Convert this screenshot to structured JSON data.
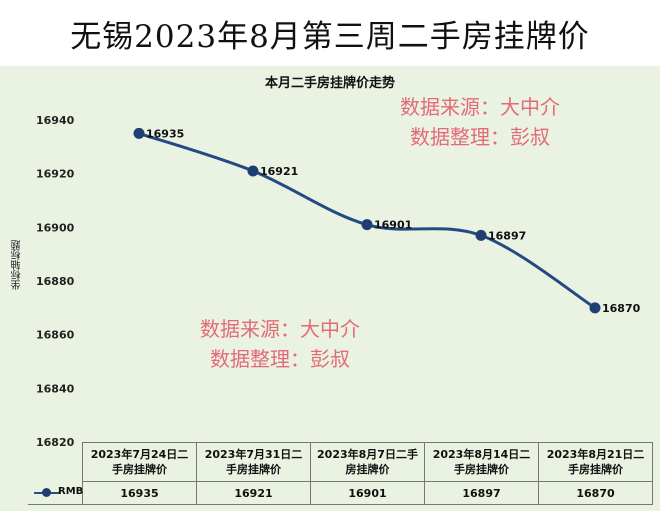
{
  "banner": {
    "title": "无锡2023年8月第三周二手房挂牌价"
  },
  "watermark": {
    "line1": "数据来源：大中介",
    "line2": "数据整理：彭叔"
  },
  "chart_data": {
    "type": "line",
    "title": "本月二手房挂牌价走势",
    "ylabel": "坐标轴标题",
    "xlabel": "",
    "ylim": [
      16820,
      16940
    ],
    "yticks": [
      16820,
      16840,
      16860,
      16880,
      16900,
      16920,
      16940
    ],
    "grid": false,
    "categories": [
      "2023年7月24日二手房挂牌价",
      "2023年7月31日二手房挂牌价",
      "2023年8月7日二手房挂牌价",
      "2023年8月14日二手房挂牌价",
      "2023年8月21日二手房挂牌价"
    ],
    "category_lines": [
      [
        "2023年7月24日二",
        "手房挂牌价"
      ],
      [
        "2023年7月31日二",
        "手房挂牌价"
      ],
      [
        "2023年8月7日二手",
        "房挂牌价"
      ],
      [
        "2023年8月14日二",
        "手房挂牌价"
      ],
      [
        "2023年8月21日二",
        "手房挂牌价"
      ]
    ],
    "series": [
      {
        "name": "RMB",
        "values": [
          16935,
          16921,
          16901,
          16897,
          16870
        ],
        "color": "#244a83"
      }
    ],
    "data_labels": [
      "16935",
      "16921",
      "16901",
      "16897",
      "16870"
    ],
    "data_table": true
  }
}
